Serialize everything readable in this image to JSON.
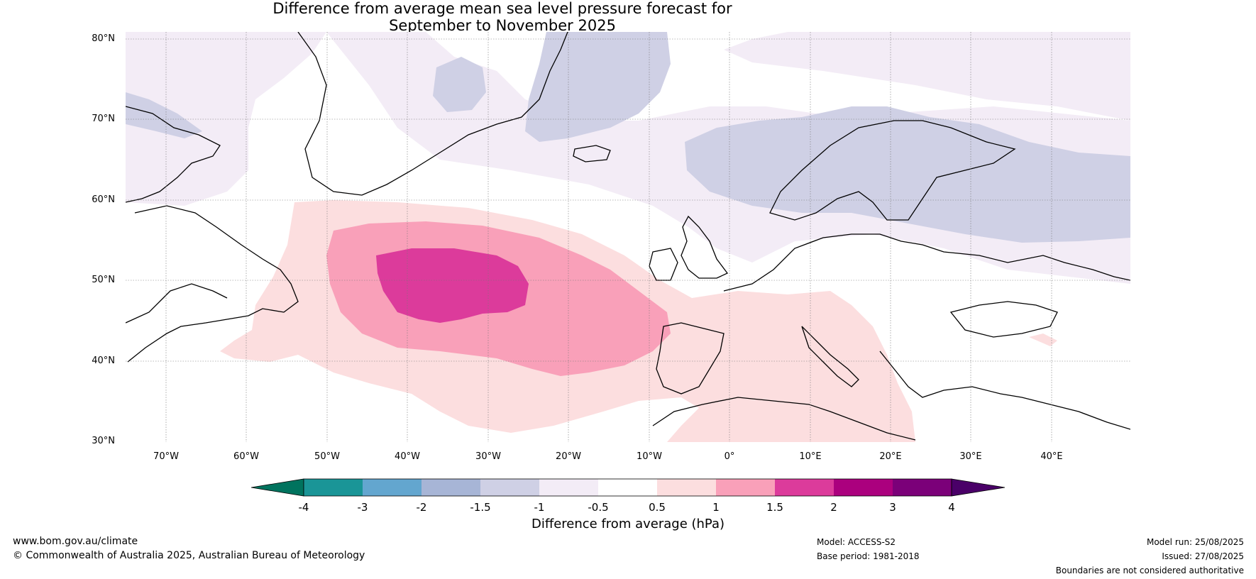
{
  "title": {
    "line1": "Difference from average mean sea level pressure forecast for",
    "line2": "September to November 2025"
  },
  "map": {
    "lat_ticks": [
      "80°N",
      "70°N",
      "60°N",
      "50°N",
      "40°N",
      "30°N"
    ],
    "lon_ticks": [
      "70°W",
      "60°W",
      "50°W",
      "40°W",
      "30°W",
      "20°W",
      "10°W",
      "0°",
      "10°E",
      "20°E",
      "30°E",
      "40°E"
    ],
    "anomaly_colors": {
      "below_-4": "#00735e",
      "-4_-3": "#1a9597",
      "-3_-2": "#63a6cf",
      "-2_-1.5": "#a7b5d6",
      "-1.5_-1": "#cfd0e5",
      "-1_-0.5": "#f3ecf6",
      "-0.5_0.5": "#ffffff",
      "0.5_1": "#fcdedf",
      "1_1.5": "#f9a0b9",
      "1.5_2": "#dc3b9b",
      "2_3": "#ab007e",
      "3_4": "#7b0079",
      "above_4": "#4a0068"
    }
  },
  "colorbar": {
    "ticks": [
      "-4",
      "-3",
      "-2",
      "-1.5",
      "-1",
      "-0.5",
      "0.5",
      "1",
      "1.5",
      "2",
      "3",
      "4"
    ],
    "label": "Difference from average (hPa)"
  },
  "footer": {
    "website": "www.bom.gov.au/climate",
    "copyright": "© Commonwealth of Australia 2025, Australian Bureau of Meteorology",
    "model": "Model: ACCESS-S2",
    "base_period": "Base period: 1981-2018",
    "model_run": "Model run: 25/08/2025",
    "issued": "Issued: 27/08/2025",
    "disclaimer": "Boundaries are not considered authoritative"
  }
}
